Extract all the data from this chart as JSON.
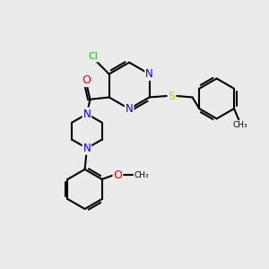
{
  "bg_color": "#ebebeb",
  "bond_color": "#000000",
  "atom_colors": {
    "N": "#0000ff",
    "O": "#ff0000",
    "S": "#cccc00",
    "Cl": "#00cc00",
    "C": "#000000"
  }
}
